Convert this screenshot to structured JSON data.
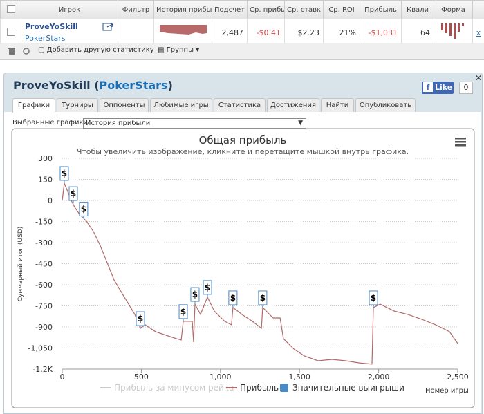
{
  "table": {
    "headers": [
      "Игрок",
      "Фильтр",
      "История прибы",
      "Подсчет",
      "Ср. прибы",
      "Ср. ставк",
      "Ср. ROI",
      "Прибыль",
      "Квали",
      "Форма"
    ],
    "row": {
      "player": "ProveYoSkill",
      "site": "PokerStars",
      "count": "2,487",
      "avg_profit": "-$0.41",
      "avg_stake": "$2.23",
      "roi": "21%",
      "profit": "-$1,031",
      "qual": "64",
      "remove": "x"
    }
  },
  "toolbar": {
    "add_stats": "Добавить другую статистику",
    "groups": "Группы"
  },
  "panel": {
    "title_player": "ProveYoSkill (",
    "title_site": "PokerStars",
    "title_end": ")",
    "like": "Like",
    "like_count": "0",
    "tabs": [
      "Графики",
      "Турниры",
      "Оппоненты",
      "Любимые игры",
      "Статистика",
      "Достижения",
      "Найти",
      "Опубликовать"
    ],
    "selected_label": "Выбранные графики:",
    "selected_value": "История прибыли"
  },
  "chart_data": {
    "type": "line",
    "title": "Общая прибыль",
    "subtitle": "Чтобы увеличить изображение, кликните и перетащите мышкой внутрь графика.",
    "x_label": "Номер игры",
    "y_label": "Суммарный итог (USD)",
    "xlim": [
      0,
      2500
    ],
    "ylim": [
      -1200,
      300
    ],
    "xticks": [
      0,
      500,
      {
        "value": 1000,
        "label": "1,000"
      },
      {
        "value": 1500,
        "label": "1,500"
      },
      {
        "value": 2000,
        "label": "2,000"
      },
      {
        "value": 2500,
        "label": "2,500"
      }
    ],
    "yticks": [
      300,
      150,
      0,
      -150,
      -300,
      -450,
      -600,
      -750,
      -900,
      {
        "value": -1050,
        "label": "-1,050"
      },
      {
        "value": -1200,
        "label": "-1.2K"
      }
    ],
    "grid": true,
    "series": [
      {
        "name": "Прибыль за минусом рейка",
        "color": "#cccccc",
        "visible": false
      },
      {
        "name": "Прибыль",
        "color": "#b06a6a",
        "x": [
          0,
          13,
          31,
          57,
          79,
          109,
          153,
          197,
          240,
          284,
          328,
          393,
          459,
          494,
          524,
          590,
          656,
          721,
          752,
          765,
          822,
          830,
          839,
          874,
          918,
          961,
          1027,
          1070,
          1079,
          1136,
          1202,
          1259,
          1267,
          1333,
          1377,
          1398,
          1464,
          1530,
          1617,
          1705,
          1792,
          1879,
          1958,
          1967,
          2010,
          2098,
          2185,
          2273,
          2360,
          2448,
          2500
        ],
        "values": [
          0,
          123,
          74,
          0,
          -49,
          -98,
          -148,
          -221,
          -320,
          -443,
          -566,
          -688,
          -811,
          -910,
          -885,
          -934,
          -959,
          -983,
          -993,
          -860,
          -860,
          -1008,
          -738,
          -811,
          -688,
          -787,
          -860,
          -885,
          -762,
          -811,
          -860,
          -910,
          -762,
          -836,
          -836,
          -983,
          -1057,
          -1106,
          -1141,
          -1131,
          -1141,
          -1156,
          -1165,
          -762,
          -738,
          -787,
          -811,
          -846,
          -885,
          -934,
          -1018
        ]
      },
      {
        "name": "Значительные выигрыши",
        "color": "#4a8ac4",
        "x": [
          13,
          70,
          135,
          494,
          765,
          839,
          918,
          1079,
          1267,
          1967
        ],
        "values": [
          123,
          -20,
          -130,
          -910,
          -860,
          -738,
          -688,
          -762,
          -762,
          -762
        ],
        "value_labels": [
          "$",
          "$",
          "$",
          "$",
          "$",
          "$",
          "$",
          "$",
          "$",
          "$"
        ]
      }
    ]
  }
}
